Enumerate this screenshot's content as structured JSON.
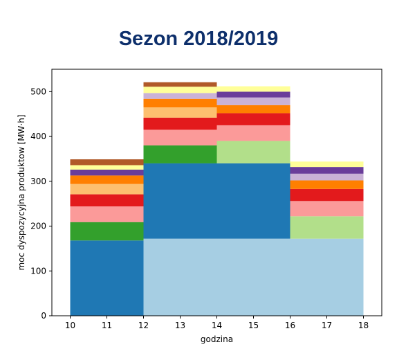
{
  "chart_data": {
    "type": "bar",
    "title": "Sezon 2018/2019",
    "xlabel": "godzina",
    "ylabel": "moc dyspozycyjna produktow [MW·h]",
    "xlim": [
      9.5,
      18.5
    ],
    "ylim": [
      0,
      550
    ],
    "xticks": [
      10,
      11,
      12,
      13,
      14,
      15,
      16,
      17,
      18
    ],
    "yticks": [
      0,
      100,
      200,
      300,
      400,
      500
    ],
    "grid": false,
    "bars": [
      {
        "x_range": [
          10,
          12
        ],
        "segments": [
          {
            "bottom": 0,
            "top": 168,
            "color": "#1f78b4"
          },
          {
            "bottom": 168,
            "top": 209,
            "color": "#33a02c"
          },
          {
            "bottom": 209,
            "top": 244,
            "color": "#fb9a99"
          },
          {
            "bottom": 244,
            "top": 271,
            "color": "#e31a1c"
          },
          {
            "bottom": 271,
            "top": 294,
            "color": "#fdbf6f"
          },
          {
            "bottom": 294,
            "top": 313,
            "color": "#ff7f00"
          },
          {
            "bottom": 313,
            "top": 326,
            "color": "#6a3d9a"
          },
          {
            "bottom": 326,
            "top": 336,
            "color": "#ffff99"
          },
          {
            "bottom": 336,
            "top": 349,
            "color": "#b15928"
          }
        ]
      },
      {
        "x_range": [
          12,
          14
        ],
        "segments": [
          {
            "bottom": 0,
            "top": 172,
            "color": "#a6cee3"
          },
          {
            "bottom": 172,
            "top": 340,
            "color": "#1f78b4"
          },
          {
            "bottom": 340,
            "top": 380,
            "color": "#33a02c"
          },
          {
            "bottom": 380,
            "top": 415,
            "color": "#fb9a99"
          },
          {
            "bottom": 415,
            "top": 442,
            "color": "#e31a1c"
          },
          {
            "bottom": 442,
            "top": 465,
            "color": "#fdbf6f"
          },
          {
            "bottom": 465,
            "top": 484,
            "color": "#ff7f00"
          },
          {
            "bottom": 484,
            "top": 497,
            "color": "#cab2d6"
          },
          {
            "bottom": 497,
            "top": 511,
            "color": "#ffff99"
          },
          {
            "bottom": 511,
            "top": 521,
            "color": "#b15928"
          }
        ]
      },
      {
        "x_range": [
          14,
          16
        ],
        "segments": [
          {
            "bottom": 0,
            "top": 172,
            "color": "#a6cee3"
          },
          {
            "bottom": 172,
            "top": 340,
            "color": "#1f78b4"
          },
          {
            "bottom": 340,
            "top": 390,
            "color": "#b2df8a"
          },
          {
            "bottom": 390,
            "top": 425,
            "color": "#fb9a99"
          },
          {
            "bottom": 425,
            "top": 452,
            "color": "#e31a1c"
          },
          {
            "bottom": 452,
            "top": 470,
            "color": "#ff7f00"
          },
          {
            "bottom": 470,
            "top": 487,
            "color": "#cab2d6"
          },
          {
            "bottom": 487,
            "top": 500,
            "color": "#6a3d9a"
          },
          {
            "bottom": 500,
            "top": 512,
            "color": "#ffff99"
          }
        ]
      },
      {
        "x_range": [
          16,
          18
        ],
        "segments": [
          {
            "bottom": 0,
            "top": 172,
            "color": "#a6cee3"
          },
          {
            "bottom": 172,
            "top": 222,
            "color": "#b2df8a"
          },
          {
            "bottom": 222,
            "top": 256,
            "color": "#fb9a99"
          },
          {
            "bottom": 256,
            "top": 283,
            "color": "#e31a1c"
          },
          {
            "bottom": 283,
            "top": 302,
            "color": "#ff7f00"
          },
          {
            "bottom": 302,
            "top": 317,
            "color": "#cab2d6"
          },
          {
            "bottom": 317,
            "top": 332,
            "color": "#6a3d9a"
          },
          {
            "bottom": 332,
            "top": 344,
            "color": "#ffff99"
          }
        ]
      }
    ]
  }
}
